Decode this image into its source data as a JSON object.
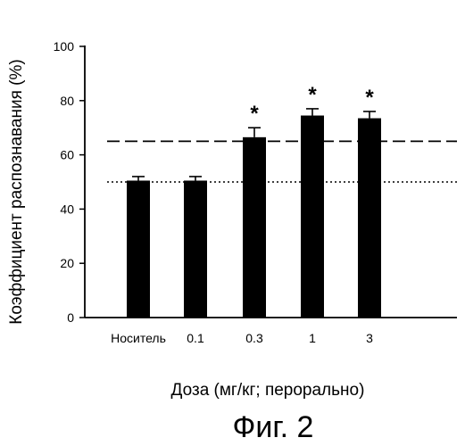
{
  "chart_data": {
    "type": "bar",
    "categories": [
      "Носитель",
      "0.1",
      "0.3",
      "1",
      "3"
    ],
    "values": [
      50.5,
      50.5,
      66.5,
      74.5,
      73.5
    ],
    "errors": [
      1.5,
      1.5,
      3.5,
      2.5,
      2.5
    ],
    "significance": [
      "",
      "",
      "*",
      "*",
      "*"
    ],
    "reference_lines": [
      {
        "style": "dashed",
        "y": 65
      },
      {
        "style": "dotted",
        "y": 50
      }
    ],
    "xlabel": "Доза (мг/кг; перорально)",
    "ylabel": "Коэффициент распознавания (%)",
    "ylim": [
      0,
      100
    ],
    "yticks": [
      0,
      20,
      40,
      60,
      80,
      100
    ],
    "bar_color": "#000000",
    "grid": false
  },
  "caption": "Фиг. 2"
}
